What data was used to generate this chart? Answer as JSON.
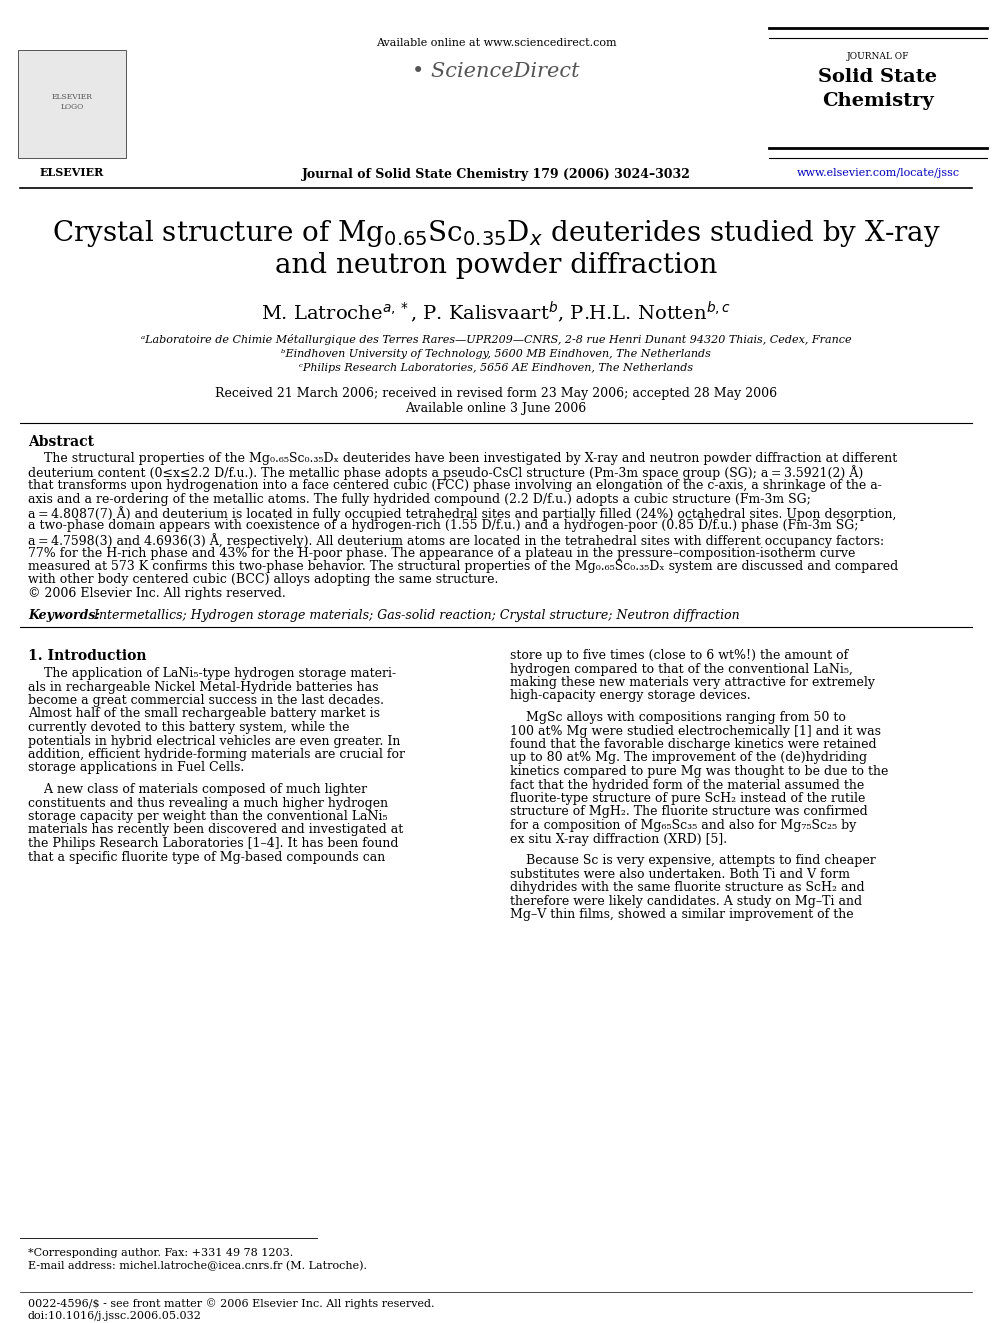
{
  "bg_color": "#ffffff",
  "header_available_online": "Available online at www.sciencedirect.com",
  "header_journal_info": "Journal of Solid State Chemistry 179 (2006) 3024–3032",
  "header_journal_label": "JOURNAL OF",
  "header_solid_state": "Solid State",
  "header_chemistry": "Chemistry",
  "header_website": "www.elsevier.com/locate/jssc",
  "header_elsevier": "ELSEVIER",
  "header_sciencedirect": "ScienceDirect",
  "title_line1": "Crystal structure of Mg$_{0.65}$Sc$_{0.35}$D$_x$ deuterides studied by X-ray",
  "title_line2": "and neutron powder diffraction",
  "authors_line": "M. Latroche$^{a,*}$, P. Kalisvaart$^{b}$, P.H.L. Notten$^{b,c}$",
  "affil1": "ᵃLaboratoire de Chimie Métallurgique des Terres Rares—UPR209—CNRS, 2-8 rue Henri Dunant 94320 Thiais, Cedex, France",
  "affil2": "ᵇEindhoven University of Technology, 5600 MB Eindhoven, The Netherlands",
  "affil3": "ᶜPhilips Research Laboratories, 5656 AE Eindhoven, The Netherlands",
  "received": "Received 21 March 2006; received in revised form 23 May 2006; accepted 28 May 2006",
  "available_online2": "Available online 3 June 2006",
  "abstract_title": "Abstract",
  "abstract_line1": "    The structural properties of the Mg₀.₆₅Sc₀.₃₅Dₓ deuterides have been investigated by X-ray and neutron powder diffraction at different",
  "abstract_line2": "deuterium content (0≤x≤2.2 D/f.u.). The metallic phase adopts a pseudo-CsCl structure (Pm-3m space group (SG); a = 3.5921(2) Å)",
  "abstract_line3": "that transforms upon hydrogenation into a face centered cubic (FCC) phase involving an elongation of the c-axis, a shrinkage of the a-",
  "abstract_line4": "axis and a re-ordering of the metallic atoms. The fully hydrided compound (2.2 D/f.u.) adopts a cubic structure (Fm-3m SG;",
  "abstract_line5": "a = 4.8087(7) Å) and deuterium is located in fully occupied tetrahedral sites and partially filled (24%) octahedral sites. Upon desorption,",
  "abstract_line6": "a two-phase domain appears with coexistence of a hydrogen-rich (1.55 D/f.u.) and a hydrogen-poor (0.85 D/f.u.) phase (Fm-3m SG;",
  "abstract_line7": "a = 4.7598(3) and 4.6936(3) Å, respectively). All deuterium atoms are located in the tetrahedral sites with different occupancy factors:",
  "abstract_line8": "77% for the H-rich phase and 43% for the H-poor phase. The appearance of a plateau in the pressure–composition-isotherm curve",
  "abstract_line9": "measured at 573 K confirms this two-phase behavior. The structural properties of the Mg₀.₆₅Sc₀.₃₅Dₓ system are discussed and compared",
  "abstract_line10": "with other body centered cubic (BCC) alloys adopting the same structure.",
  "copyright": "© 2006 Elsevier Inc. All rights reserved.",
  "keywords_label": "Keywords:",
  "keywords": " Intermetallics; Hydrogen storage materials; Gas-solid reaction; Crystal structure; Neutron diffraction",
  "section1_title": "1. Introduction",
  "col1_para1_line1": "    The application of LaNi₅-type hydrogen storage materi-",
  "col1_para1_line2": "als in rechargeable Nickel Metal-Hydride batteries has",
  "col1_para1_line3": "become a great commercial success in the last decades.",
  "col1_para1_line4": "Almost half of the small rechargeable battery market is",
  "col1_para1_line5": "currently devoted to this battery system, while the",
  "col1_para1_line6": "potentials in hybrid electrical vehicles are even greater. In",
  "col1_para1_line7": "addition, efficient hydride-forming materials are crucial for",
  "col1_para1_line8": "storage applications in Fuel Cells.",
  "col1_para2_line1": "    A new class of materials composed of much lighter",
  "col1_para2_line2": "constituents and thus revealing a much higher hydrogen",
  "col1_para2_line3": "storage capacity per weight than the conventional LaNi₅",
  "col1_para2_line4": "materials has recently been discovered and investigated at",
  "col1_para2_line5": "the Philips Research Laboratories [1–4]. It has been found",
  "col1_para2_line6": "that a specific fluorite type of Mg-based compounds can",
  "col2_para1_line1": "store up to five times (close to 6 wt%!) the amount of",
  "col2_para1_line2": "hydrogen compared to that of the conventional LaNi₅,",
  "col2_para1_line3": "making these new materials very attractive for extremely",
  "col2_para1_line4": "high-capacity energy storage devices.",
  "col2_para2_line1": "    MgSc alloys with compositions ranging from 50 to",
  "col2_para2_line2": "100 at% Mg were studied electrochemically [1] and it was",
  "col2_para2_line3": "found that the favorable discharge kinetics were retained",
  "col2_para2_line4": "up to 80 at% Mg. The improvement of the (de)hydriding",
  "col2_para2_line5": "kinetics compared to pure Mg was thought to be due to the",
  "col2_para2_line6": "fact that the hydrided form of the material assumed the",
  "col2_para2_line7": "fluorite-type structure of pure ScH₂ instead of the rutile",
  "col2_para2_line8": "structure of MgH₂. The fluorite structure was confirmed",
  "col2_para2_line9": "for a composition of Mg₆₅Sc₃₅ and also for Mg₇₅Sc₂₅ by",
  "col2_para2_line10": "ex situ X-ray diffraction (XRD) [5].",
  "col2_para3_line1": "    Because Sc is very expensive, attempts to find cheaper",
  "col2_para3_line2": "substitutes were also undertaken. Both Ti and V form",
  "col2_para3_line3": "dihydrides with the same fluorite structure as ScH₂ and",
  "col2_para3_line4": "therefore were likely candidates. A study on Mg–Ti and",
  "col2_para3_line5": "Mg–V thin films, showed a similar improvement of the",
  "footnote_star": "*Corresponding author. Fax: +331 49 78 1203.",
  "footnote_email": "E-mail address: michel.latroche@icea.cnrs.fr (M. Latroche).",
  "footer_left": "0022-4596/$ - see front matter © 2006 Elsevier Inc. All rights reserved.",
  "footer_doi": "doi:10.1016/j.jssc.2006.05.032"
}
